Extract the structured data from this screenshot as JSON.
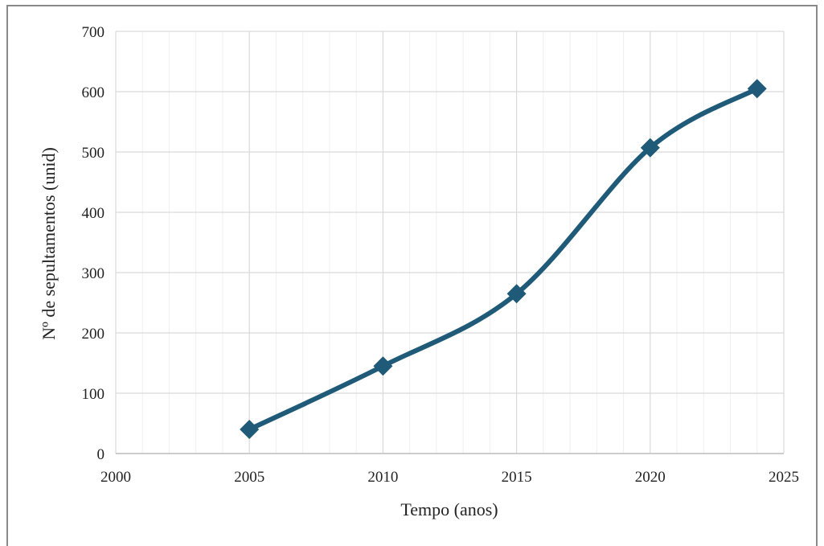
{
  "chart_data": {
    "type": "line",
    "title": "",
    "xlabel": "Tempo (anos)",
    "ylabel": "Nº de sepultamentos (unid)",
    "xlim": [
      2000,
      2025
    ],
    "ylim": [
      0,
      700
    ],
    "x_ticks": [
      "2000",
      "2005",
      "2010",
      "2015",
      "2020",
      "2025"
    ],
    "y_ticks": [
      "0",
      "100",
      "200",
      "300",
      "400",
      "500",
      "600",
      "700"
    ],
    "grid": true,
    "marker": "diamond",
    "smooth": true,
    "line_color": "#1f5a78",
    "series": [
      {
        "x": [
          2005,
          2010,
          2015,
          2020,
          2024
        ],
        "values": [
          40,
          145,
          265,
          507,
          605
        ]
      }
    ]
  }
}
